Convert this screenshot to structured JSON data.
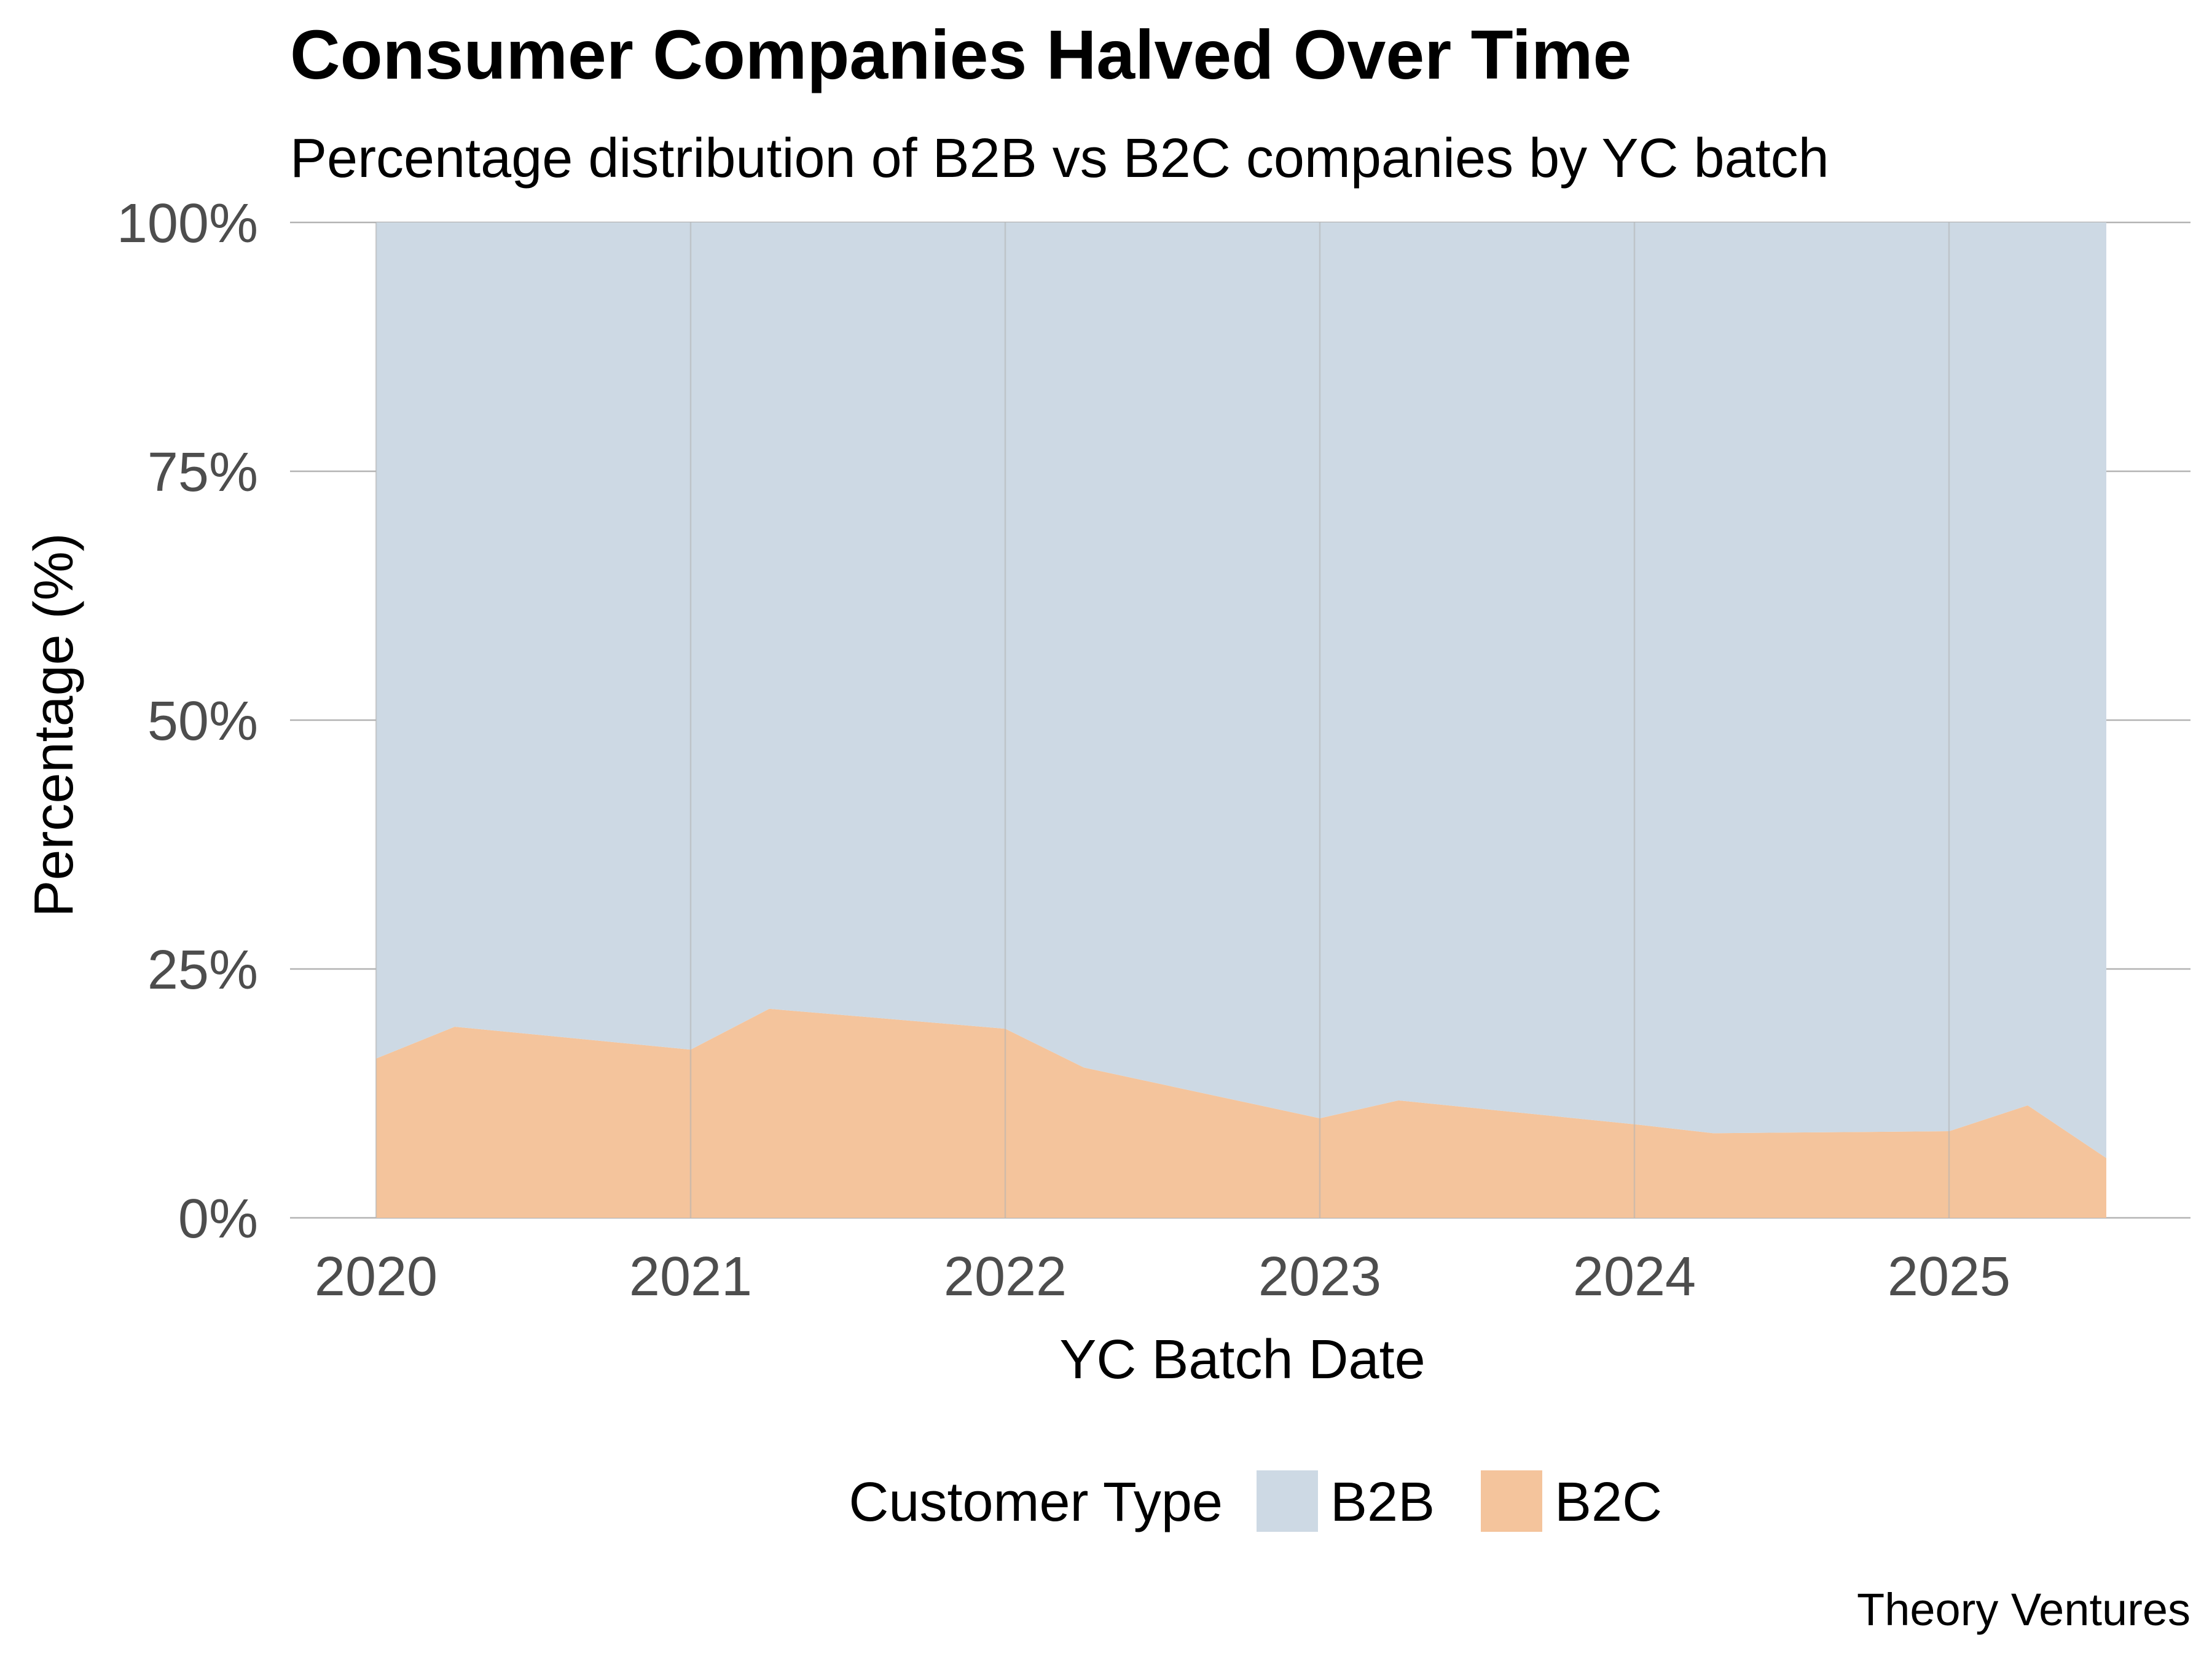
{
  "chart_data": {
    "type": "area",
    "title": "Consumer Companies Halved Over Time",
    "subtitle": "Percentage distribution of B2B vs B2C companies by YC batch",
    "xlabel": "YC Batch Date",
    "ylabel": "Percentage (%)",
    "caption": "Theory Ventures",
    "stacked": true,
    "x_ticks": [
      "2020",
      "2021",
      "2022",
      "2023",
      "2024",
      "2025"
    ],
    "y_ticks": [
      "0%",
      "25%",
      "50%",
      "75%",
      "100%"
    ],
    "xlim": [
      "2020-01",
      "2025-07"
    ],
    "ylim": [
      0,
      100
    ],
    "grid": true,
    "legend": {
      "title": "Customer Type",
      "position": "bottom",
      "entries": [
        "B2B",
        "B2C"
      ]
    },
    "x": [
      "2020-01",
      "2020-04",
      "2021-01",
      "2021-04",
      "2022-01",
      "2022-04",
      "2023-01",
      "2023-04",
      "2024-01",
      "2024-04",
      "2025-01",
      "2025-04",
      "2025-07"
    ],
    "series": [
      {
        "name": "B2C",
        "color": "#f4c49c",
        "values": [
          16.0,
          19.2,
          16.9,
          21.0,
          19.0,
          15.1,
          10.0,
          11.8,
          9.4,
          8.5,
          8.7,
          11.3,
          6.0
        ]
      },
      {
        "name": "B2B",
        "color": "#cdd9e4",
        "values": [
          84.0,
          80.8,
          83.1,
          79.0,
          81.0,
          84.9,
          90.0,
          88.2,
          90.6,
          91.5,
          91.3,
          88.7,
          94.0
        ]
      }
    ]
  }
}
